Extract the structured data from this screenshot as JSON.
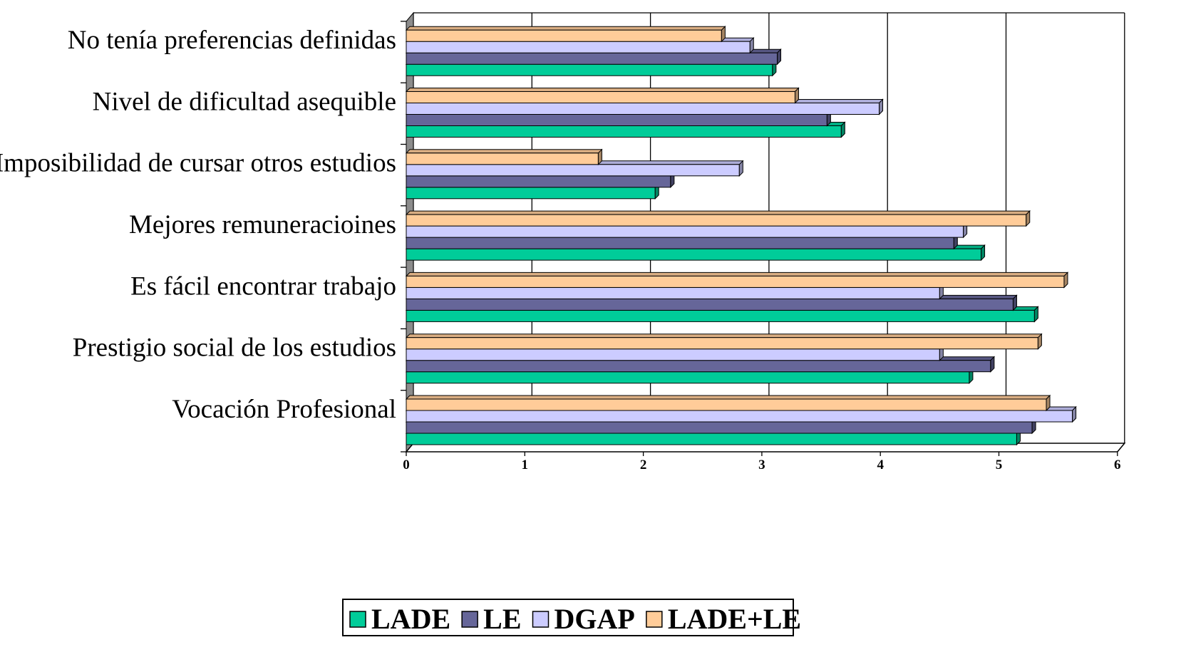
{
  "chart_data": {
    "type": "bar",
    "orientation": "horizontal",
    "three_d": true,
    "categories": [
      "Vocación Profesional",
      "Prestigio social de los estudios",
      "Es fácil encontrar trabajo",
      "Mejores remuneracioines",
      "Imposibilidad de cursar otros estudios",
      "Nivel de dificultad asequible",
      "No tenía preferencias definidas"
    ],
    "series": [
      {
        "name": "LADE",
        "color": "#00cc99",
        "values": [
          5.15,
          4.75,
          5.3,
          4.85,
          2.1,
          3.67,
          3.09
        ]
      },
      {
        "name": "LE",
        "color": "#666699",
        "values": [
          5.28,
          4.93,
          5.12,
          4.62,
          2.23,
          3.55,
          3.13
        ]
      },
      {
        "name": "DGAP",
        "color": "#ccccff",
        "values": [
          5.62,
          4.5,
          4.5,
          4.7,
          2.81,
          3.99,
          2.9
        ]
      },
      {
        "name": "LADE+LE",
        "color": "#ffcc99",
        "values": [
          5.4,
          5.33,
          5.55,
          5.23,
          1.62,
          3.28,
          2.66
        ]
      }
    ],
    "x_ticks": [
      "0",
      "1",
      "2",
      "3",
      "4",
      "5",
      "6"
    ],
    "xlim": [
      0,
      6
    ],
    "grid": true,
    "legend_position": "bottom"
  }
}
